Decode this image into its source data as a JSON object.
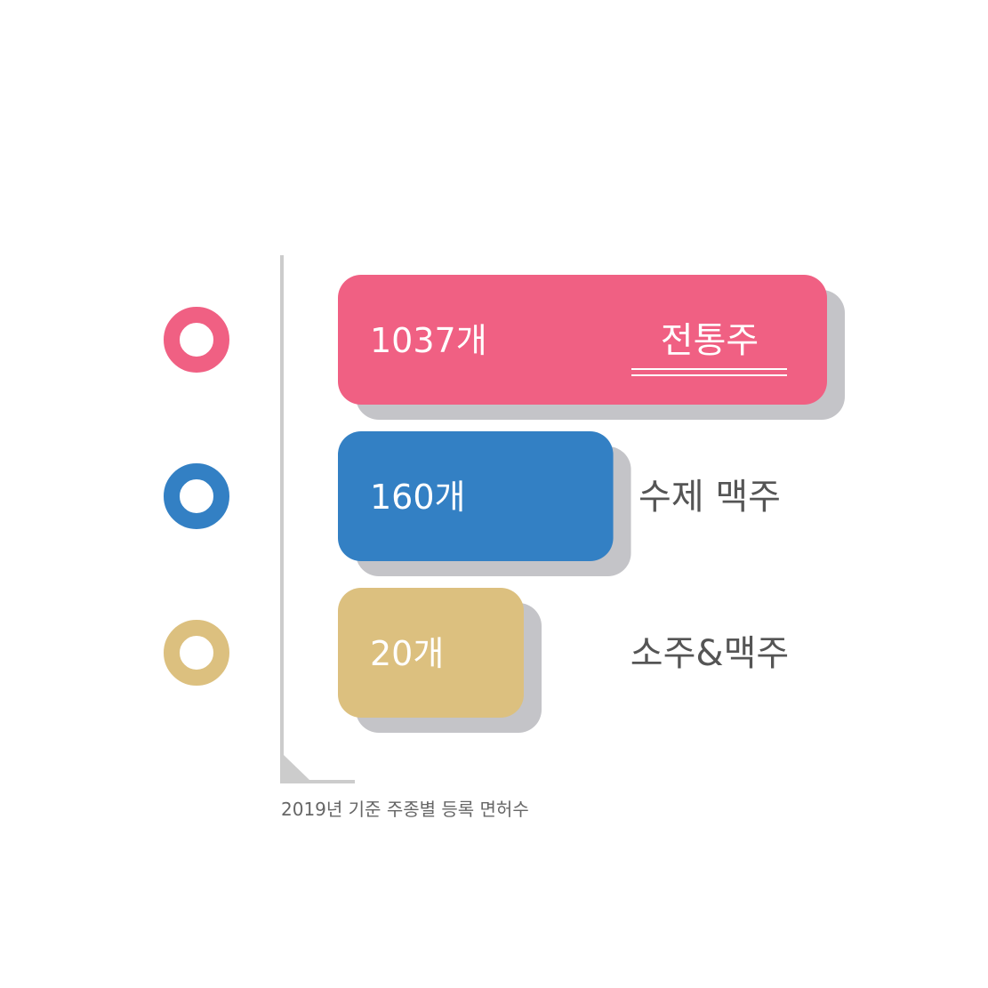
{
  "chart_data": {
    "type": "bar",
    "orientation": "horizontal",
    "categories": [
      "전통주",
      "수제 맥주",
      "소주&맥주"
    ],
    "values": [
      1037,
      160,
      20
    ],
    "value_labels": [
      "1037개",
      "160개",
      "20개"
    ],
    "caption": "2019년 기준 주종별 등록 면허수",
    "grid": false,
    "legend": "none",
    "highlight_category": "전통주"
  },
  "colors": {
    "series": [
      "#f06083",
      "#3380c4",
      "#dcc07f"
    ],
    "shadow": "#c4c4c8",
    "axis": "#cccccc",
    "highlight_label": "#ffffff",
    "category_label": "#555555"
  },
  "icons": [
    "ring-marker-icon",
    "ring-marker-icon",
    "ring-marker-icon"
  ]
}
